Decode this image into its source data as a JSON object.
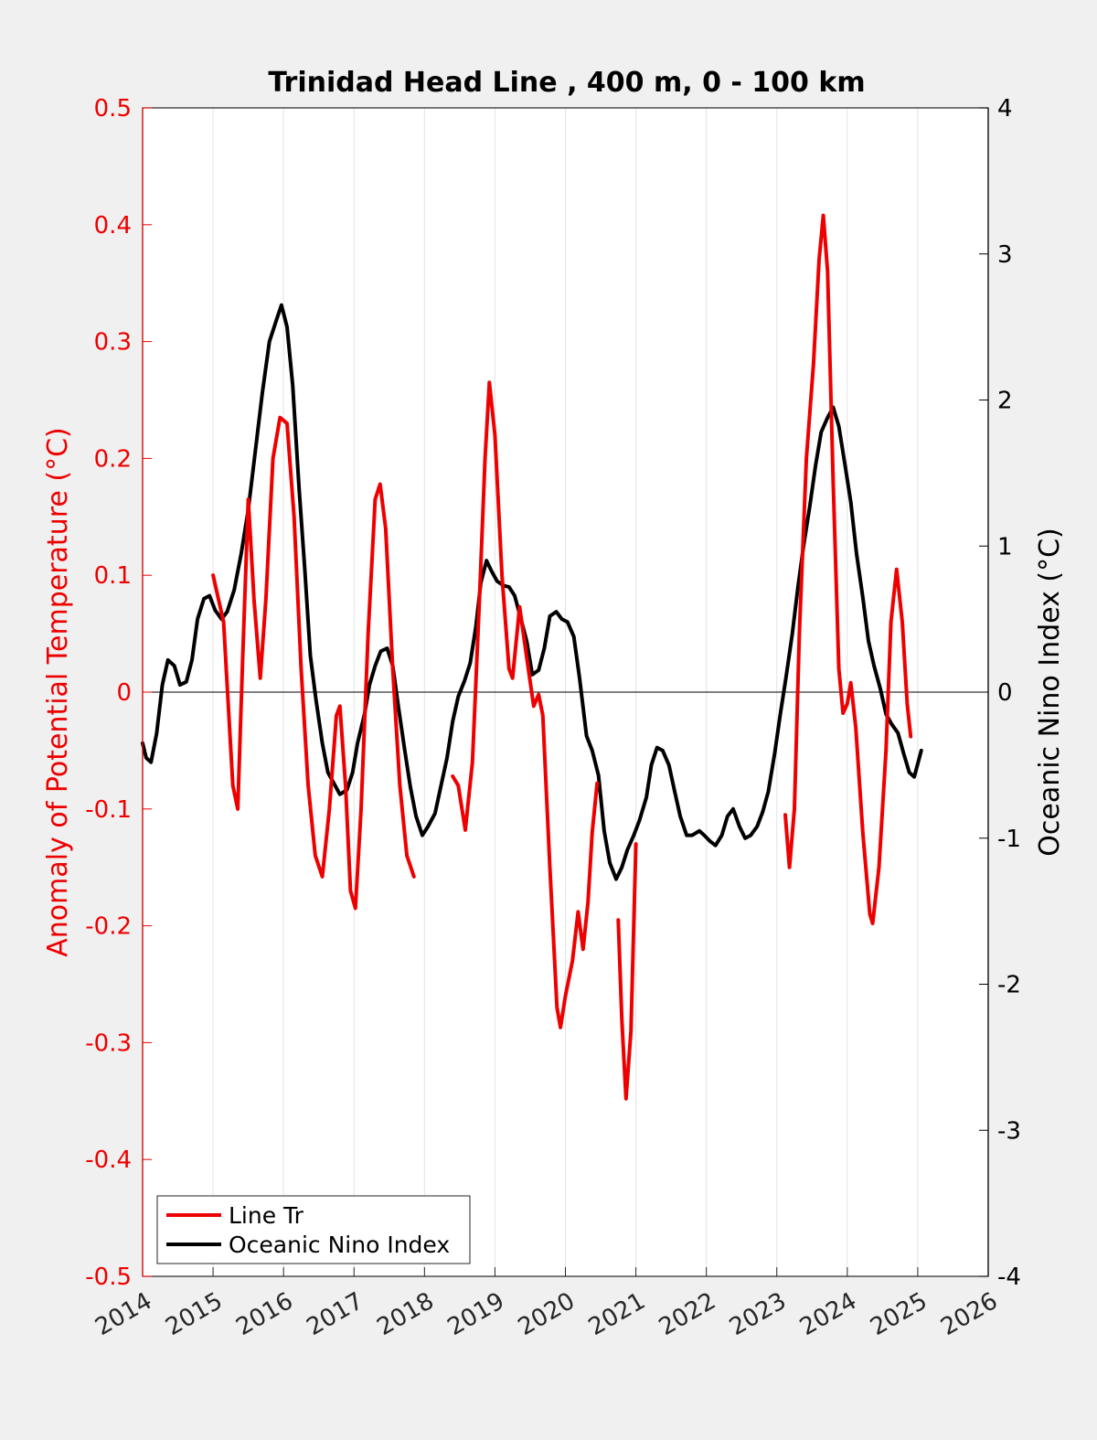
{
  "chart_data": {
    "type": "line",
    "title": "Trinidad Head Line , 400 m, 0 - 100 km",
    "xlabel": "",
    "ylabel_left": "Anomaly of Potential Temperature (°C)",
    "ylabel_right": "Oceanic Nino Index (°C)",
    "xlim": [
      2014,
      2026
    ],
    "ylim_left": [
      -0.5,
      0.5
    ],
    "ylim_right": [
      -4,
      4
    ],
    "x_ticks": [
      "2014",
      "2015",
      "2016",
      "2017",
      "2018",
      "2019",
      "2020",
      "2021",
      "2022",
      "2023",
      "2024",
      "2025",
      "2026"
    ],
    "y_left_ticks": [
      "-0.5",
      "-0.4",
      "-0.3",
      "-0.2",
      "-0.1",
      "0",
      "0.1",
      "0.2",
      "0.3",
      "0.4",
      "0.5"
    ],
    "y_right_ticks": [
      "-4",
      "-3",
      "-2",
      "-1",
      "0",
      "1",
      "2",
      "3",
      "4"
    ],
    "grid": "vertical",
    "legend_position": "bottom-left",
    "colors": {
      "line_tr": "#ee0000",
      "oni": "#000000",
      "axis_left": "#ee0000",
      "axis_right": "#000000"
    },
    "series": [
      {
        "name": "Line Tr",
        "axis": "left",
        "segments": [
          [
            [
              2015.0,
              0.1
            ],
            [
              2015.15,
              0.06
            ],
            [
              2015.28,
              -0.08
            ],
            [
              2015.35,
              -0.1
            ],
            [
              2015.42,
              0.03
            ],
            [
              2015.5,
              0.165
            ],
            [
              2015.58,
              0.08
            ],
            [
              2015.67,
              0.012
            ],
            [
              2015.75,
              0.08
            ],
            [
              2015.85,
              0.2
            ],
            [
              2015.95,
              0.235
            ],
            [
              2016.05,
              0.23
            ],
            [
              2016.15,
              0.15
            ],
            [
              2016.25,
              0.02
            ],
            [
              2016.35,
              -0.08
            ],
            [
              2016.45,
              -0.14
            ],
            [
              2016.55,
              -0.158
            ],
            [
              2016.65,
              -0.1
            ],
            [
              2016.75,
              -0.02
            ],
            [
              2016.8,
              -0.012
            ],
            [
              2016.88,
              -0.08
            ],
            [
              2016.95,
              -0.17
            ],
            [
              2017.02,
              -0.185
            ],
            [
              2017.1,
              -0.1
            ],
            [
              2017.2,
              0.05
            ],
            [
              2017.3,
              0.165
            ],
            [
              2017.37,
              0.178
            ],
            [
              2017.45,
              0.14
            ],
            [
              2017.55,
              0.02
            ],
            [
              2017.65,
              -0.08
            ],
            [
              2017.75,
              -0.14
            ],
            [
              2017.85,
              -0.158
            ]
          ],
          [
            [
              2018.4,
              -0.072
            ],
            [
              2018.48,
              -0.08
            ],
            [
              2018.58,
              -0.118
            ],
            [
              2018.68,
              -0.06
            ],
            [
              2018.78,
              0.08
            ],
            [
              2018.86,
              0.2
            ],
            [
              2018.92,
              0.265
            ],
            [
              2019.0,
              0.22
            ],
            [
              2019.1,
              0.1
            ],
            [
              2019.2,
              0.02
            ],
            [
              2019.25,
              0.012
            ],
            [
              2019.35,
              0.073
            ],
            [
              2019.45,
              0.03
            ],
            [
              2019.55,
              -0.012
            ],
            [
              2019.62,
              -0.002
            ],
            [
              2019.68,
              -0.02
            ],
            [
              2019.78,
              -0.15
            ],
            [
              2019.88,
              -0.27
            ],
            [
              2019.93,
              -0.287
            ],
            [
              2020.0,
              -0.26
            ],
            [
              2020.1,
              -0.23
            ],
            [
              2020.18,
              -0.188
            ],
            [
              2020.25,
              -0.22
            ],
            [
              2020.32,
              -0.18
            ],
            [
              2020.38,
              -0.12
            ],
            [
              2020.45,
              -0.078
            ]
          ],
          [
            [
              2020.75,
              -0.195
            ],
            [
              2020.8,
              -0.28
            ],
            [
              2020.86,
              -0.348
            ],
            [
              2020.93,
              -0.29
            ],
            [
              2021.0,
              -0.13
            ]
          ],
          [
            [
              2023.12,
              -0.105
            ],
            [
              2023.18,
              -0.15
            ],
            [
              2023.25,
              -0.1
            ],
            [
              2023.32,
              0.05
            ],
            [
              2023.42,
              0.2
            ],
            [
              2023.52,
              0.28
            ],
            [
              2023.6,
              0.37
            ],
            [
              2023.66,
              0.408
            ],
            [
              2023.72,
              0.36
            ],
            [
              2023.8,
              0.18
            ],
            [
              2023.88,
              0.02
            ],
            [
              2023.94,
              -0.018
            ],
            [
              2024.0,
              -0.01
            ],
            [
              2024.05,
              0.008
            ],
            [
              2024.12,
              -0.03
            ],
            [
              2024.22,
              -0.12
            ],
            [
              2024.32,
              -0.19
            ],
            [
              2024.36,
              -0.198
            ],
            [
              2024.45,
              -0.15
            ],
            [
              2024.55,
              -0.05
            ],
            [
              2024.62,
              0.06
            ],
            [
              2024.7,
              0.105
            ],
            [
              2024.78,
              0.06
            ],
            [
              2024.85,
              -0.01
            ],
            [
              2024.9,
              -0.038
            ]
          ]
        ]
      },
      {
        "name": "Oceanic Nino Index",
        "axis": "right",
        "segments": [
          [
            [
              2014.0,
              -0.35
            ],
            [
              2014.05,
              -0.45
            ],
            [
              2014.12,
              -0.48
            ],
            [
              2014.2,
              -0.28
            ],
            [
              2014.28,
              0.05
            ],
            [
              2014.36,
              0.22
            ],
            [
              2014.45,
              0.18
            ],
            [
              2014.53,
              0.05
            ],
            [
              2014.62,
              0.07
            ],
            [
              2014.7,
              0.22
            ],
            [
              2014.78,
              0.5
            ],
            [
              2014.87,
              0.64
            ],
            [
              2014.95,
              0.66
            ],
            [
              2015.03,
              0.56
            ],
            [
              2015.12,
              0.5
            ],
            [
              2015.2,
              0.55
            ],
            [
              2015.3,
              0.7
            ],
            [
              2015.4,
              0.95
            ],
            [
              2015.5,
              1.25
            ],
            [
              2015.6,
              1.65
            ],
            [
              2015.7,
              2.05
            ],
            [
              2015.8,
              2.4
            ],
            [
              2015.9,
              2.55
            ],
            [
              2015.97,
              2.65
            ],
            [
              2016.05,
              2.5
            ],
            [
              2016.13,
              2.1
            ],
            [
              2016.22,
              1.4
            ],
            [
              2016.3,
              0.85
            ],
            [
              2016.38,
              0.25
            ],
            [
              2016.46,
              -0.05
            ],
            [
              2016.55,
              -0.35
            ],
            [
              2016.63,
              -0.55
            ],
            [
              2016.72,
              -0.63
            ],
            [
              2016.8,
              -0.7
            ],
            [
              2016.9,
              -0.67
            ],
            [
              2016.98,
              -0.55
            ],
            [
              2017.05,
              -0.35
            ],
            [
              2017.15,
              -0.15
            ],
            [
              2017.22,
              0.05
            ],
            [
              2017.3,
              0.18
            ],
            [
              2017.38,
              0.28
            ],
            [
              2017.47,
              0.3
            ],
            [
              2017.55,
              0.18
            ],
            [
              2017.63,
              -0.1
            ],
            [
              2017.72,
              -0.4
            ],
            [
              2017.8,
              -0.65
            ],
            [
              2017.88,
              -0.85
            ],
            [
              2017.97,
              -0.98
            ],
            [
              2018.05,
              -0.92
            ],
            [
              2018.15,
              -0.83
            ],
            [
              2018.23,
              -0.65
            ],
            [
              2018.32,
              -0.45
            ],
            [
              2018.4,
              -0.2
            ],
            [
              2018.48,
              -0.03
            ],
            [
              2018.57,
              0.08
            ],
            [
              2018.65,
              0.2
            ],
            [
              2018.73,
              0.45
            ],
            [
              2018.8,
              0.75
            ],
            [
              2018.88,
              0.9
            ],
            [
              2018.95,
              0.83
            ],
            [
              2019.03,
              0.76
            ],
            [
              2019.12,
              0.73
            ],
            [
              2019.2,
              0.72
            ],
            [
              2019.28,
              0.66
            ],
            [
              2019.37,
              0.5
            ],
            [
              2019.45,
              0.35
            ],
            [
              2019.53,
              0.12
            ],
            [
              2019.62,
              0.15
            ],
            [
              2019.7,
              0.3
            ],
            [
              2019.78,
              0.52
            ],
            [
              2019.87,
              0.55
            ],
            [
              2019.95,
              0.5
            ],
            [
              2020.03,
              0.48
            ],
            [
              2020.12,
              0.38
            ],
            [
              2020.2,
              0.1
            ],
            [
              2020.3,
              -0.3
            ],
            [
              2020.38,
              -0.4
            ],
            [
              2020.47,
              -0.57
            ],
            [
              2020.55,
              -0.95
            ],
            [
              2020.63,
              -1.17
            ],
            [
              2020.72,
              -1.28
            ],
            [
              2020.8,
              -1.2
            ],
            [
              2020.88,
              -1.08
            ],
            [
              2020.97,
              -0.98
            ],
            [
              2021.05,
              -0.88
            ],
            [
              2021.15,
              -0.72
            ],
            [
              2021.22,
              -0.5
            ],
            [
              2021.3,
              -0.38
            ],
            [
              2021.38,
              -0.4
            ],
            [
              2021.47,
              -0.5
            ],
            [
              2021.55,
              -0.68
            ],
            [
              2021.63,
              -0.85
            ],
            [
              2021.72,
              -0.98
            ],
            [
              2021.8,
              -0.98
            ],
            [
              2021.9,
              -0.95
            ],
            [
              2021.97,
              -0.98
            ],
            [
              2022.05,
              -1.02
            ],
            [
              2022.13,
              -1.05
            ],
            [
              2022.22,
              -0.98
            ],
            [
              2022.3,
              -0.85
            ],
            [
              2022.38,
              -0.8
            ],
            [
              2022.47,
              -0.92
            ],
            [
              2022.55,
              -1.0
            ],
            [
              2022.63,
              -0.98
            ],
            [
              2022.72,
              -0.92
            ],
            [
              2022.8,
              -0.82
            ],
            [
              2022.88,
              -0.68
            ],
            [
              2022.97,
              -0.42
            ],
            [
              2023.05,
              -0.15
            ],
            [
              2023.13,
              0.1
            ],
            [
              2023.22,
              0.4
            ],
            [
              2023.3,
              0.72
            ],
            [
              2023.38,
              1.0
            ],
            [
              2023.47,
              1.28
            ],
            [
              2023.55,
              1.55
            ],
            [
              2023.63,
              1.78
            ],
            [
              2023.72,
              1.88
            ],
            [
              2023.8,
              1.95
            ],
            [
              2023.88,
              1.82
            ],
            [
              2023.97,
              1.55
            ],
            [
              2024.05,
              1.3
            ],
            [
              2024.13,
              0.95
            ],
            [
              2024.22,
              0.65
            ],
            [
              2024.3,
              0.35
            ],
            [
              2024.38,
              0.18
            ],
            [
              2024.47,
              0.02
            ],
            [
              2024.55,
              -0.15
            ],
            [
              2024.63,
              -0.22
            ],
            [
              2024.72,
              -0.28
            ],
            [
              2024.8,
              -0.42
            ],
            [
              2024.88,
              -0.55
            ],
            [
              2024.95,
              -0.58
            ],
            [
              2025.05,
              -0.4
            ]
          ]
        ]
      }
    ]
  }
}
